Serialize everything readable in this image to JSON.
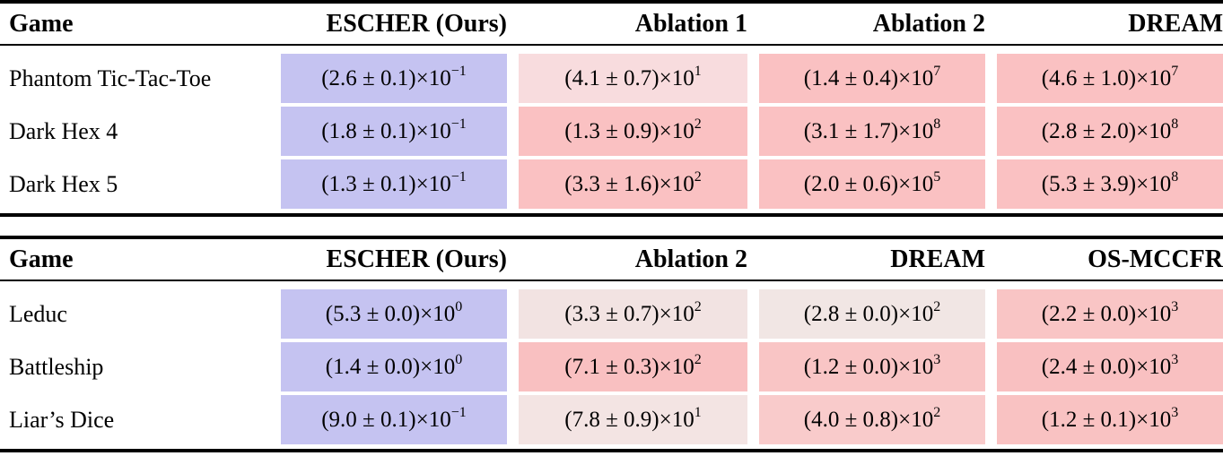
{
  "legend_colors": {
    "best_cell_blue": "#c5c3f1",
    "bad_cell_pink": "#fac1c2",
    "mild_cell_light_pink": "#f8dcde",
    "neutral_cell_dusty": "#f1e6e4"
  },
  "tables": [
    {
      "columns": [
        "Game",
        "ESCHER (Ours)",
        "Ablation 1",
        "Ablation 2",
        "DREAM"
      ],
      "rows": [
        {
          "game": "Phantom Tic-Tac-Toe",
          "cells": [
            {
              "base": "(2.6 ± 0.1)×10",
              "exp": "−1",
              "bg": "#c5c3f1"
            },
            {
              "base": "(4.1 ± 0.7)×10",
              "exp": "1",
              "bg": "#f8dcde"
            },
            {
              "base": "(1.4 ± 0.4)×10",
              "exp": "7",
              "bg": "#fac1c2"
            },
            {
              "base": "(4.6 ± 1.0)×10",
              "exp": "7",
              "bg": "#fac1c2"
            }
          ]
        },
        {
          "game": "Dark Hex 4",
          "cells": [
            {
              "base": "(1.8 ± 0.1)×10",
              "exp": "−1",
              "bg": "#c5c3f1"
            },
            {
              "base": "(1.3 ± 0.9)×10",
              "exp": "2",
              "bg": "#fac1c2"
            },
            {
              "base": "(3.1 ± 1.7)×10",
              "exp": "8",
              "bg": "#fac1c2"
            },
            {
              "base": "(2.8 ± 2.0)×10",
              "exp": "8",
              "bg": "#fac1c2"
            }
          ]
        },
        {
          "game": "Dark Hex 5",
          "cells": [
            {
              "base": "(1.3 ± 0.1)×10",
              "exp": "−1",
              "bg": "#c5c3f1"
            },
            {
              "base": "(3.3 ± 1.6)×10",
              "exp": "2",
              "bg": "#fac1c2"
            },
            {
              "base": "(2.0 ± 0.6)×10",
              "exp": "5",
              "bg": "#fac1c2"
            },
            {
              "base": "(5.3 ± 3.9)×10",
              "exp": "8",
              "bg": "#fac1c2"
            }
          ]
        }
      ]
    },
    {
      "columns": [
        "Game",
        "ESCHER (Ours)",
        "Ablation 2",
        "DREAM",
        "OS-MCCFR"
      ],
      "rows": [
        {
          "game": "Leduc",
          "cells": [
            {
              "base": "(5.3 ± 0.0)×10",
              "exp": "0",
              "bg": "#c5c3f1"
            },
            {
              "base": "(3.3 ± 0.7)×10",
              "exp": "2",
              "bg": "#f2e3e2"
            },
            {
              "base": "(2.8 ± 0.0)×10",
              "exp": "2",
              "bg": "#f1e6e4"
            },
            {
              "base": "(2.2 ± 0.0)×10",
              "exp": "3",
              "bg": "#f9c5c5"
            }
          ]
        },
        {
          "game": "Battleship",
          "cells": [
            {
              "base": "(1.4 ± 0.0)×10",
              "exp": "0",
              "bg": "#c5c3f1"
            },
            {
              "base": "(7.1 ± 0.3)×10",
              "exp": "2",
              "bg": "#f9c0c1"
            },
            {
              "base": "(1.2 ± 0.0)×10",
              "exp": "3",
              "bg": "#f9c5c5"
            },
            {
              "base": "(2.4 ± 0.0)×10",
              "exp": "3",
              "bg": "#f9c0c1"
            }
          ]
        },
        {
          "game": "Liar’s Dice",
          "cells": [
            {
              "base": "(9.0 ± 0.1)×10",
              "exp": "−1",
              "bg": "#c5c3f1"
            },
            {
              "base": "(7.8 ± 0.9)×10",
              "exp": "1",
              "bg": "#f3e4e3"
            },
            {
              "base": "(4.0 ± 0.8)×10",
              "exp": "2",
              "bg": "#f9cbcb"
            },
            {
              "base": "(1.2 ± 0.1)×10",
              "exp": "3",
              "bg": "#f9c2c2"
            }
          ]
        }
      ]
    }
  ]
}
